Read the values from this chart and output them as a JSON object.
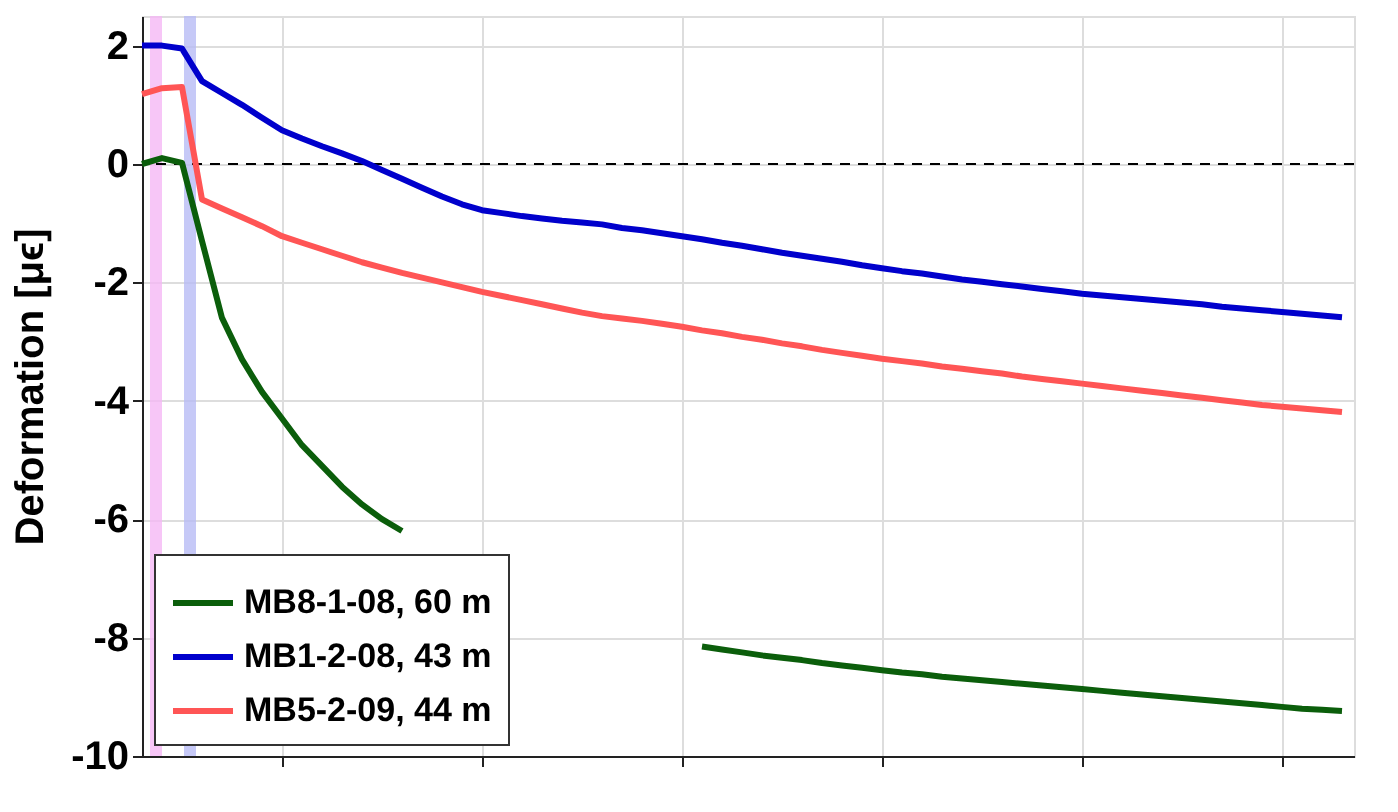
{
  "chart_data": {
    "type": "line",
    "ylabel": "Deformation [μϵ]",
    "categories": [
      null,
      null,
      null,
      null,
      null,
      null,
      null,
      null,
      null,
      null,
      null,
      null,
      null,
      null,
      null,
      null,
      null,
      null,
      null,
      null,
      null,
      null,
      null,
      null,
      null,
      null,
      null,
      null,
      null,
      null,
      null,
      null,
      null,
      null,
      null,
      null,
      null,
      null,
      null,
      null,
      null,
      null,
      null,
      null,
      null,
      null,
      null,
      null,
      null,
      null,
      null,
      null,
      null,
      null,
      null,
      null,
      null,
      null,
      null,
      null,
      null
    ],
    "ylim": [
      -10,
      2.5
    ],
    "yticks": [
      -10,
      -8,
      -6,
      -4,
      -2,
      0,
      2
    ],
    "tick_labels": "y",
    "grid": true,
    "legend": "bottom left",
    "line_style": "solid",
    "marker": "none",
    "series": [
      {
        "name": "MB8-1-08, 60 m",
        "color": "#0b5e0b",
        "values": [
          0,
          0.1,
          0.02,
          -1.3,
          -2.6,
          -3.3,
          -3.85,
          -4.3,
          -4.75,
          -5.1,
          -5.45,
          -5.75,
          -6.0,
          -6.2,
          null,
          null,
          null,
          null,
          null,
          null,
          null,
          null,
          null,
          null,
          null,
          null,
          null,
          null,
          -8.15,
          -8.2,
          -8.25,
          -8.3,
          -8.34,
          -8.38,
          -8.43,
          -8.47,
          -8.51,
          -8.55,
          -8.59,
          -8.62,
          -8.66,
          -8.69,
          -8.72,
          -8.75,
          -8.78,
          -8.81,
          -8.84,
          -8.87,
          -8.9,
          -8.93,
          -8.96,
          -8.99,
          -9.02,
          -9.05,
          -9.08,
          -9.11,
          -9.14,
          -9.17,
          -9.2,
          -9.22,
          -9.24
        ]
      },
      {
        "name": "MB1-2-08, 43 m",
        "color": "#0000cc",
        "values": [
          2.0,
          2.0,
          1.95,
          1.4,
          1.2,
          1.0,
          0.78,
          0.57,
          0.43,
          0.3,
          0.18,
          0.05,
          -0.1,
          -0.25,
          -0.4,
          -0.55,
          -0.68,
          -0.78,
          -0.83,
          -0.88,
          -0.92,
          -0.96,
          -0.99,
          -1.02,
          -1.08,
          -1.12,
          -1.17,
          -1.22,
          -1.27,
          -1.33,
          -1.38,
          -1.44,
          -1.5,
          -1.55,
          -1.6,
          -1.65,
          -1.71,
          -1.76,
          -1.81,
          -1.85,
          -1.9,
          -1.95,
          -1.99,
          -2.03,
          -2.07,
          -2.11,
          -2.15,
          -2.19,
          -2.22,
          -2.25,
          -2.28,
          -2.31,
          -2.34,
          -2.37,
          -2.41,
          -2.44,
          -2.47,
          -2.5,
          -2.53,
          -2.56,
          -2.59
        ]
      },
      {
        "name": "MB5-2-09, 44 m",
        "color": "#ff5555",
        "values": [
          1.18,
          1.28,
          1.3,
          -0.6,
          -0.75,
          -0.9,
          -1.05,
          -1.22,
          -1.33,
          -1.44,
          -1.55,
          -1.66,
          -1.75,
          -1.84,
          -1.92,
          -2.0,
          -2.08,
          -2.16,
          -2.23,
          -2.3,
          -2.37,
          -2.44,
          -2.51,
          -2.57,
          -2.61,
          -2.65,
          -2.7,
          -2.75,
          -2.81,
          -2.86,
          -2.92,
          -2.97,
          -3.03,
          -3.08,
          -3.14,
          -3.19,
          -3.24,
          -3.29,
          -3.33,
          -3.37,
          -3.42,
          -3.46,
          -3.5,
          -3.54,
          -3.59,
          -3.63,
          -3.67,
          -3.71,
          -3.75,
          -3.79,
          -3.83,
          -3.87,
          -3.91,
          -3.95,
          -3.99,
          -4.03,
          -4.07,
          -4.1,
          -4.13,
          -4.16,
          -4.19
        ]
      }
    ],
    "ref_lines": [
      {
        "axis": "y",
        "value": 0,
        "color": "#000000",
        "line_style": "dashed"
      }
    ]
  }
}
